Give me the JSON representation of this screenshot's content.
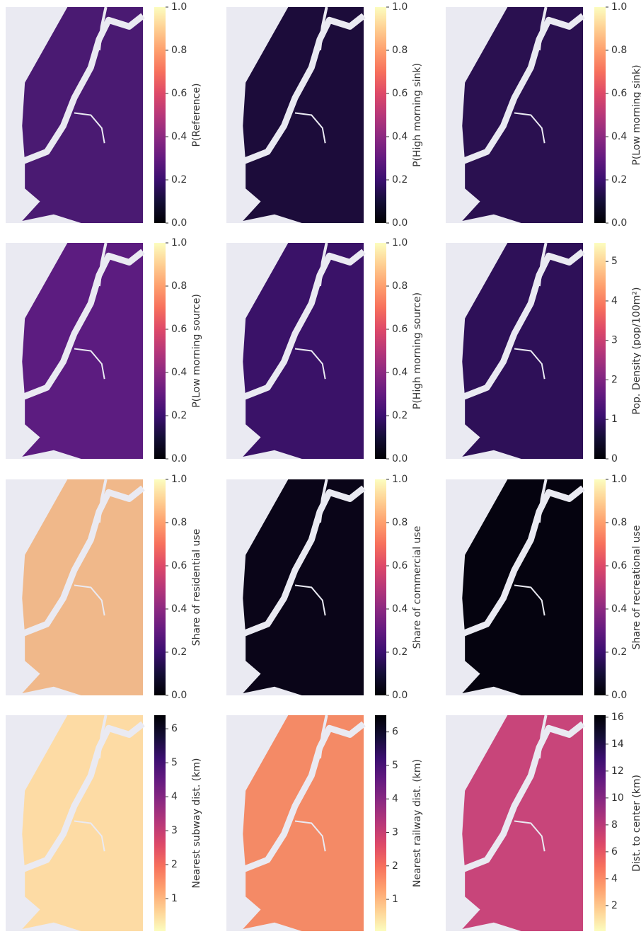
{
  "chart_data": [
    {
      "type": "heatmap",
      "colorbar_label": "P(Reference)",
      "cmap": "magma",
      "color": "#4a1a72",
      "zlim": [
        0,
        1
      ],
      "zticks": [
        {
          "value": 0,
          "label": "0.0"
        },
        0.2,
        0.4,
        0.6,
        0.8,
        {
          "value": 1,
          "label": "1.0"
        }
      ]
    },
    {
      "type": "heatmap",
      "colorbar_label": "P(High morning sink)",
      "cmap": "magma",
      "color": "#1c0c3a",
      "zlim": [
        0,
        1
      ],
      "zticks": [
        {
          "value": 0,
          "label": "0.0"
        },
        0.2,
        0.4,
        0.6,
        0.8,
        {
          "value": 1,
          "label": "1.0"
        }
      ]
    },
    {
      "type": "heatmap",
      "colorbar_label": "P(Low morning sink)",
      "cmap": "magma",
      "color": "#2a1050",
      "zlim": [
        0,
        1
      ],
      "zticks": [
        {
          "value": 0,
          "label": "0.0"
        },
        0.2,
        0.4,
        0.6,
        0.8,
        {
          "value": 1,
          "label": "1.0"
        }
      ]
    },
    {
      "type": "heatmap",
      "colorbar_label": "P(Low morning source)",
      "cmap": "magma",
      "color": "#5c1c80",
      "zlim": [
        0,
        1
      ],
      "zticks": [
        {
          "value": 0,
          "label": "0.0"
        },
        0.2,
        0.4,
        0.6,
        0.8,
        {
          "value": 1,
          "label": "1.0"
        }
      ]
    },
    {
      "type": "heatmap",
      "colorbar_label": "P(High morning source)",
      "cmap": "magma",
      "color": "#3a1268",
      "zlim": [
        0,
        1
      ],
      "zticks": [
        {
          "value": 0,
          "label": "0.0"
        },
        0.2,
        0.4,
        0.6,
        0.8,
        {
          "value": 1,
          "label": "1.0"
        }
      ]
    },
    {
      "type": "heatmap",
      "colorbar_label": "Pop. Density (pop/100m²)",
      "cmap": "magma",
      "color": "#2e1058",
      "zlim": [
        0,
        5.47
      ],
      "zticks": [
        0,
        1,
        2,
        3,
        4,
        5
      ]
    },
    {
      "type": "heatmap",
      "colorbar_label": "Share of residential use",
      "cmap": "magma",
      "color": "#f0b88a",
      "zlim": [
        0,
        1
      ],
      "zticks": [
        {
          "value": 0,
          "label": "0.0"
        },
        0.2,
        0.4,
        0.6,
        0.8,
        {
          "value": 1,
          "label": "1.0"
        }
      ]
    },
    {
      "type": "heatmap",
      "colorbar_label": "Share of commercial use",
      "cmap": "magma",
      "color": "#0a0518",
      "zlim": [
        0,
        1
      ],
      "zticks": [
        {
          "value": 0,
          "label": "0.0"
        },
        0.2,
        0.4,
        0.6,
        0.8,
        {
          "value": 1,
          "label": "1.0"
        }
      ]
    },
    {
      "type": "heatmap",
      "colorbar_label": "Share of recreational use",
      "cmap": "magma",
      "color": "#05030f",
      "zlim": [
        0,
        1
      ],
      "zticks": [
        {
          "value": 0,
          "label": "0.0"
        },
        0.2,
        0.4,
        0.6,
        0.8,
        {
          "value": 1,
          "label": "1.0"
        }
      ]
    },
    {
      "type": "heatmap",
      "colorbar_label": "Nearest subway dist. (km)",
      "cmap": "magma_r",
      "color": "#fddba4",
      "zlim": [
        0.04,
        6.4
      ],
      "zticks": [
        1,
        2,
        3,
        4,
        5,
        6
      ]
    },
    {
      "type": "heatmap",
      "colorbar_label": "Nearest railway dist. (km)",
      "cmap": "magma_r",
      "color": "#f48a66",
      "zlim": [
        0.05,
        6.5
      ],
      "zticks": [
        1,
        2,
        3,
        4,
        5,
        6
      ]
    },
    {
      "type": "heatmap",
      "colorbar_label": "Dist. to center (km)",
      "cmap": "magma_r",
      "color": "#c8457a",
      "zlim": [
        0.1,
        16.15
      ],
      "zticks": [
        2,
        4,
        6,
        8,
        10,
        12,
        14,
        16
      ]
    }
  ]
}
